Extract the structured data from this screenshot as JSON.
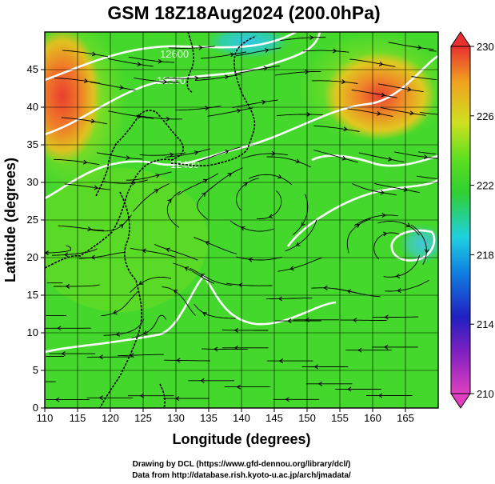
{
  "title": "GSM 18Z18Aug2024 (200.0hPa)",
  "x_axis": {
    "label": "Longitude (degrees)",
    "range": [
      110,
      170
    ],
    "ticks": [
      "110",
      "115",
      "120",
      "125",
      "130",
      "135",
      "140",
      "145",
      "150",
      "155",
      "160",
      "165"
    ]
  },
  "y_axis": {
    "label": "Latitude (degrees)",
    "range": [
      0,
      50
    ],
    "ticks": [
      "0",
      "5",
      "10",
      "15",
      "20",
      "25",
      "30",
      "35",
      "40",
      "45"
    ]
  },
  "colorbar": {
    "range": [
      210,
      230
    ],
    "ticks": [
      "210",
      "214",
      "218",
      "222",
      "226",
      "230"
    ],
    "colors": [
      "#e040c0",
      "#8020c0",
      "#2020c0",
      "#1080e0",
      "#20d0e0",
      "#30d030",
      "#60e020",
      "#d0e020",
      "#f0a020",
      "#e83030"
    ]
  },
  "contour_labels": [
    "12600",
    "12500",
    "12400"
  ],
  "credits": {
    "line1": "Drawing by DCL (https://www.gfd-dennou.org/library/dcl/)",
    "line2": "Data from http://database.rish.kyoto-u.ac.jp/arch/jmadata/"
  },
  "colors": {
    "background_field": "#44d82c",
    "warm_region": "#f08828",
    "hot_core": "#e84030",
    "cool_region": "#30c8d0",
    "contour": "#ffffff",
    "streamline": "#000000"
  }
}
